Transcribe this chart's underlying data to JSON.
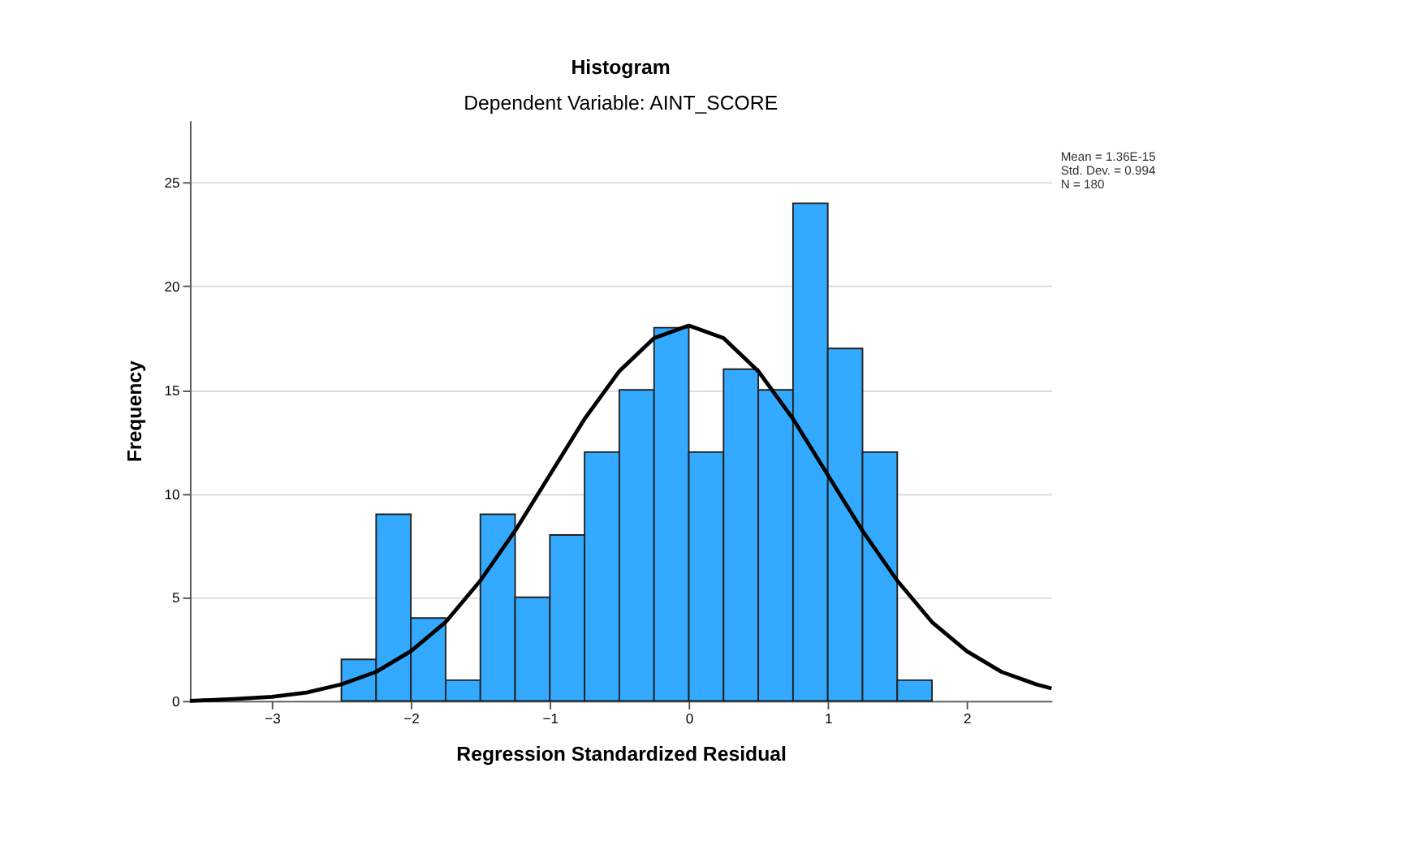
{
  "chart_data": {
    "type": "histogram",
    "title": "Histogram",
    "subtitle": "Dependent Variable: AINT_SCORE",
    "xlabel": "Regression Standardized Residual",
    "ylabel": "Frequency",
    "bins": [
      -2.5,
      -2.25,
      -2.0,
      -1.75,
      -1.5,
      -1.25,
      -1.0,
      -0.75,
      -0.5,
      -0.25,
      0.0,
      0.25,
      0.5,
      0.75,
      1.0,
      1.25,
      1.5,
      1.75
    ],
    "values": [
      2,
      9,
      4,
      1,
      9,
      5,
      8,
      12,
      15,
      18,
      12,
      16,
      15,
      24,
      17,
      12,
      1
    ],
    "color": "#33aaff",
    "series": [
      {
        "type": "line",
        "color": "#000000",
        "x": [
          -3.59,
          -3.25,
          -3.0,
          -2.75,
          -2.5,
          -2.25,
          -2.0,
          -1.75,
          -1.5,
          -1.25,
          -1.0,
          -0.75,
          -0.5,
          -0.25,
          0.0,
          0.25,
          0.5,
          0.75,
          1.0,
          1.25,
          1.5,
          1.75,
          2.0,
          2.25,
          2.5,
          2.61
        ],
        "values": [
          0.0,
          0.1,
          0.2,
          0.4,
          0.8,
          1.4,
          2.4,
          3.8,
          5.8,
          8.2,
          10.9,
          13.6,
          15.9,
          17.5,
          18.1,
          17.5,
          15.9,
          13.6,
          10.9,
          8.2,
          5.8,
          3.8,
          2.4,
          1.4,
          0.8,
          0.6
        ]
      }
    ],
    "xlim": [
      -3.59,
      2.61
    ],
    "xticks": [
      -3,
      -2,
      -1,
      0,
      1,
      2
    ],
    "ylim": [
      0,
      28
    ],
    "yticks": [
      0,
      5,
      10,
      15,
      20,
      25
    ],
    "grid": "y",
    "annotations": [
      "Mean = 1.36E-15",
      "Std. Dev. = 0.994",
      "N = 180"
    ]
  }
}
